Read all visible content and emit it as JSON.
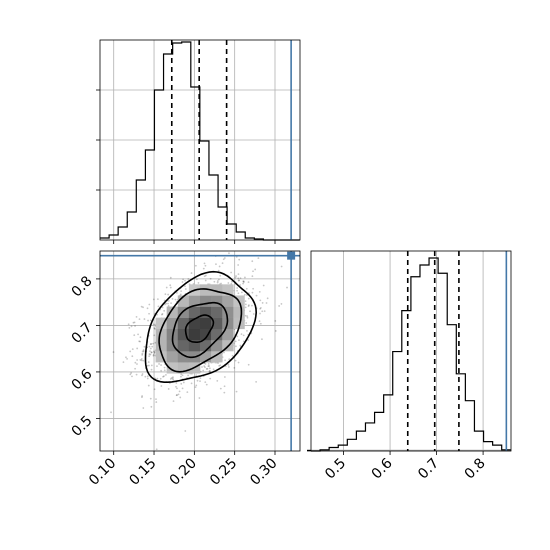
{
  "chart_data": {
    "type": "corner",
    "parameters": [
      "",
      ""
    ],
    "truths": [
      0.32,
      0.85
    ],
    "truth_color": "#4478a8",
    "grid": true,
    "panels": [
      {
        "id": "hist-param1",
        "type": "histogram",
        "xlim": [
          0.083,
          0.331
        ],
        "quantiles": [
          0.172,
          0.206,
          0.24
        ],
        "bin_edges": [
          0.083,
          0.0943,
          0.1055,
          0.1168,
          0.128,
          0.1393,
          0.1505,
          0.1618,
          0.1731,
          0.1843,
          0.1956,
          0.2068,
          0.2181,
          0.2294,
          0.2406,
          0.2519,
          0.2631,
          0.2744,
          0.2856,
          0.2969,
          0.3081,
          0.3194,
          0.3307
        ],
        "counts": [
          2,
          5,
          13,
          28,
          60,
          90,
          150,
          186,
          197,
          198,
          153,
          99,
          65,
          33,
          16,
          8,
          2,
          1,
          0,
          0,
          0,
          0
        ],
        "ylim": [
          0,
          200
        ],
        "xticks": [
          0.1,
          0.15,
          0.2,
          0.25,
          0.3
        ],
        "xtick_labels": [],
        "yticks": [
          50,
          100,
          150
        ],
        "ytick_labels": []
      },
      {
        "id": "scatter-2d",
        "type": "density2d",
        "xlim": [
          0.083,
          0.331
        ],
        "ylim": [
          0.43,
          0.86
        ],
        "center": [
          0.206,
          0.693
        ],
        "sigma": [
          0.034,
          0.058
        ],
        "correlation": 0.35,
        "contour_levels_sigma": [
          0.5,
          1.0,
          1.5,
          2.0
        ],
        "xticks": [
          0.1,
          0.15,
          0.2,
          0.25,
          0.3
        ],
        "xtick_labels": [
          "0.10",
          "0.15",
          "0.20",
          "0.25",
          "0.30"
        ],
        "yticks": [
          0.5,
          0.6,
          0.7,
          0.8
        ],
        "ytick_labels": [
          "0.5",
          "0.6",
          "0.7",
          "0.8"
        ]
      },
      {
        "id": "hist-param2",
        "type": "histogram",
        "xlim": [
          0.43,
          0.86
        ],
        "quantiles": [
          0.638,
          0.696,
          0.748
        ],
        "bin_edges": [
          0.43,
          0.4495,
          0.469,
          0.4886,
          0.5081,
          0.5276,
          0.5471,
          0.5667,
          0.5862,
          0.6057,
          0.6252,
          0.6448,
          0.6643,
          0.6838,
          0.7033,
          0.7229,
          0.7424,
          0.7619,
          0.7814,
          0.801,
          0.8205,
          0.84,
          0.8595
        ],
        "counts": [
          0,
          1,
          3,
          5,
          10,
          17,
          24,
          33,
          48,
          85,
          120,
          149,
          159,
          165,
          152,
          108,
          66,
          43,
          17,
          8,
          5,
          1
        ],
        "ylim": [
          0,
          171
        ],
        "xticks": [
          0.5,
          0.6,
          0.7,
          0.8
        ],
        "xtick_labels": [
          "0.5",
          "0.6",
          "0.7",
          "0.8"
        ],
        "yticks": [
          0.04,
          0.36,
          0.68
        ],
        "ytick_labels": []
      }
    ]
  }
}
